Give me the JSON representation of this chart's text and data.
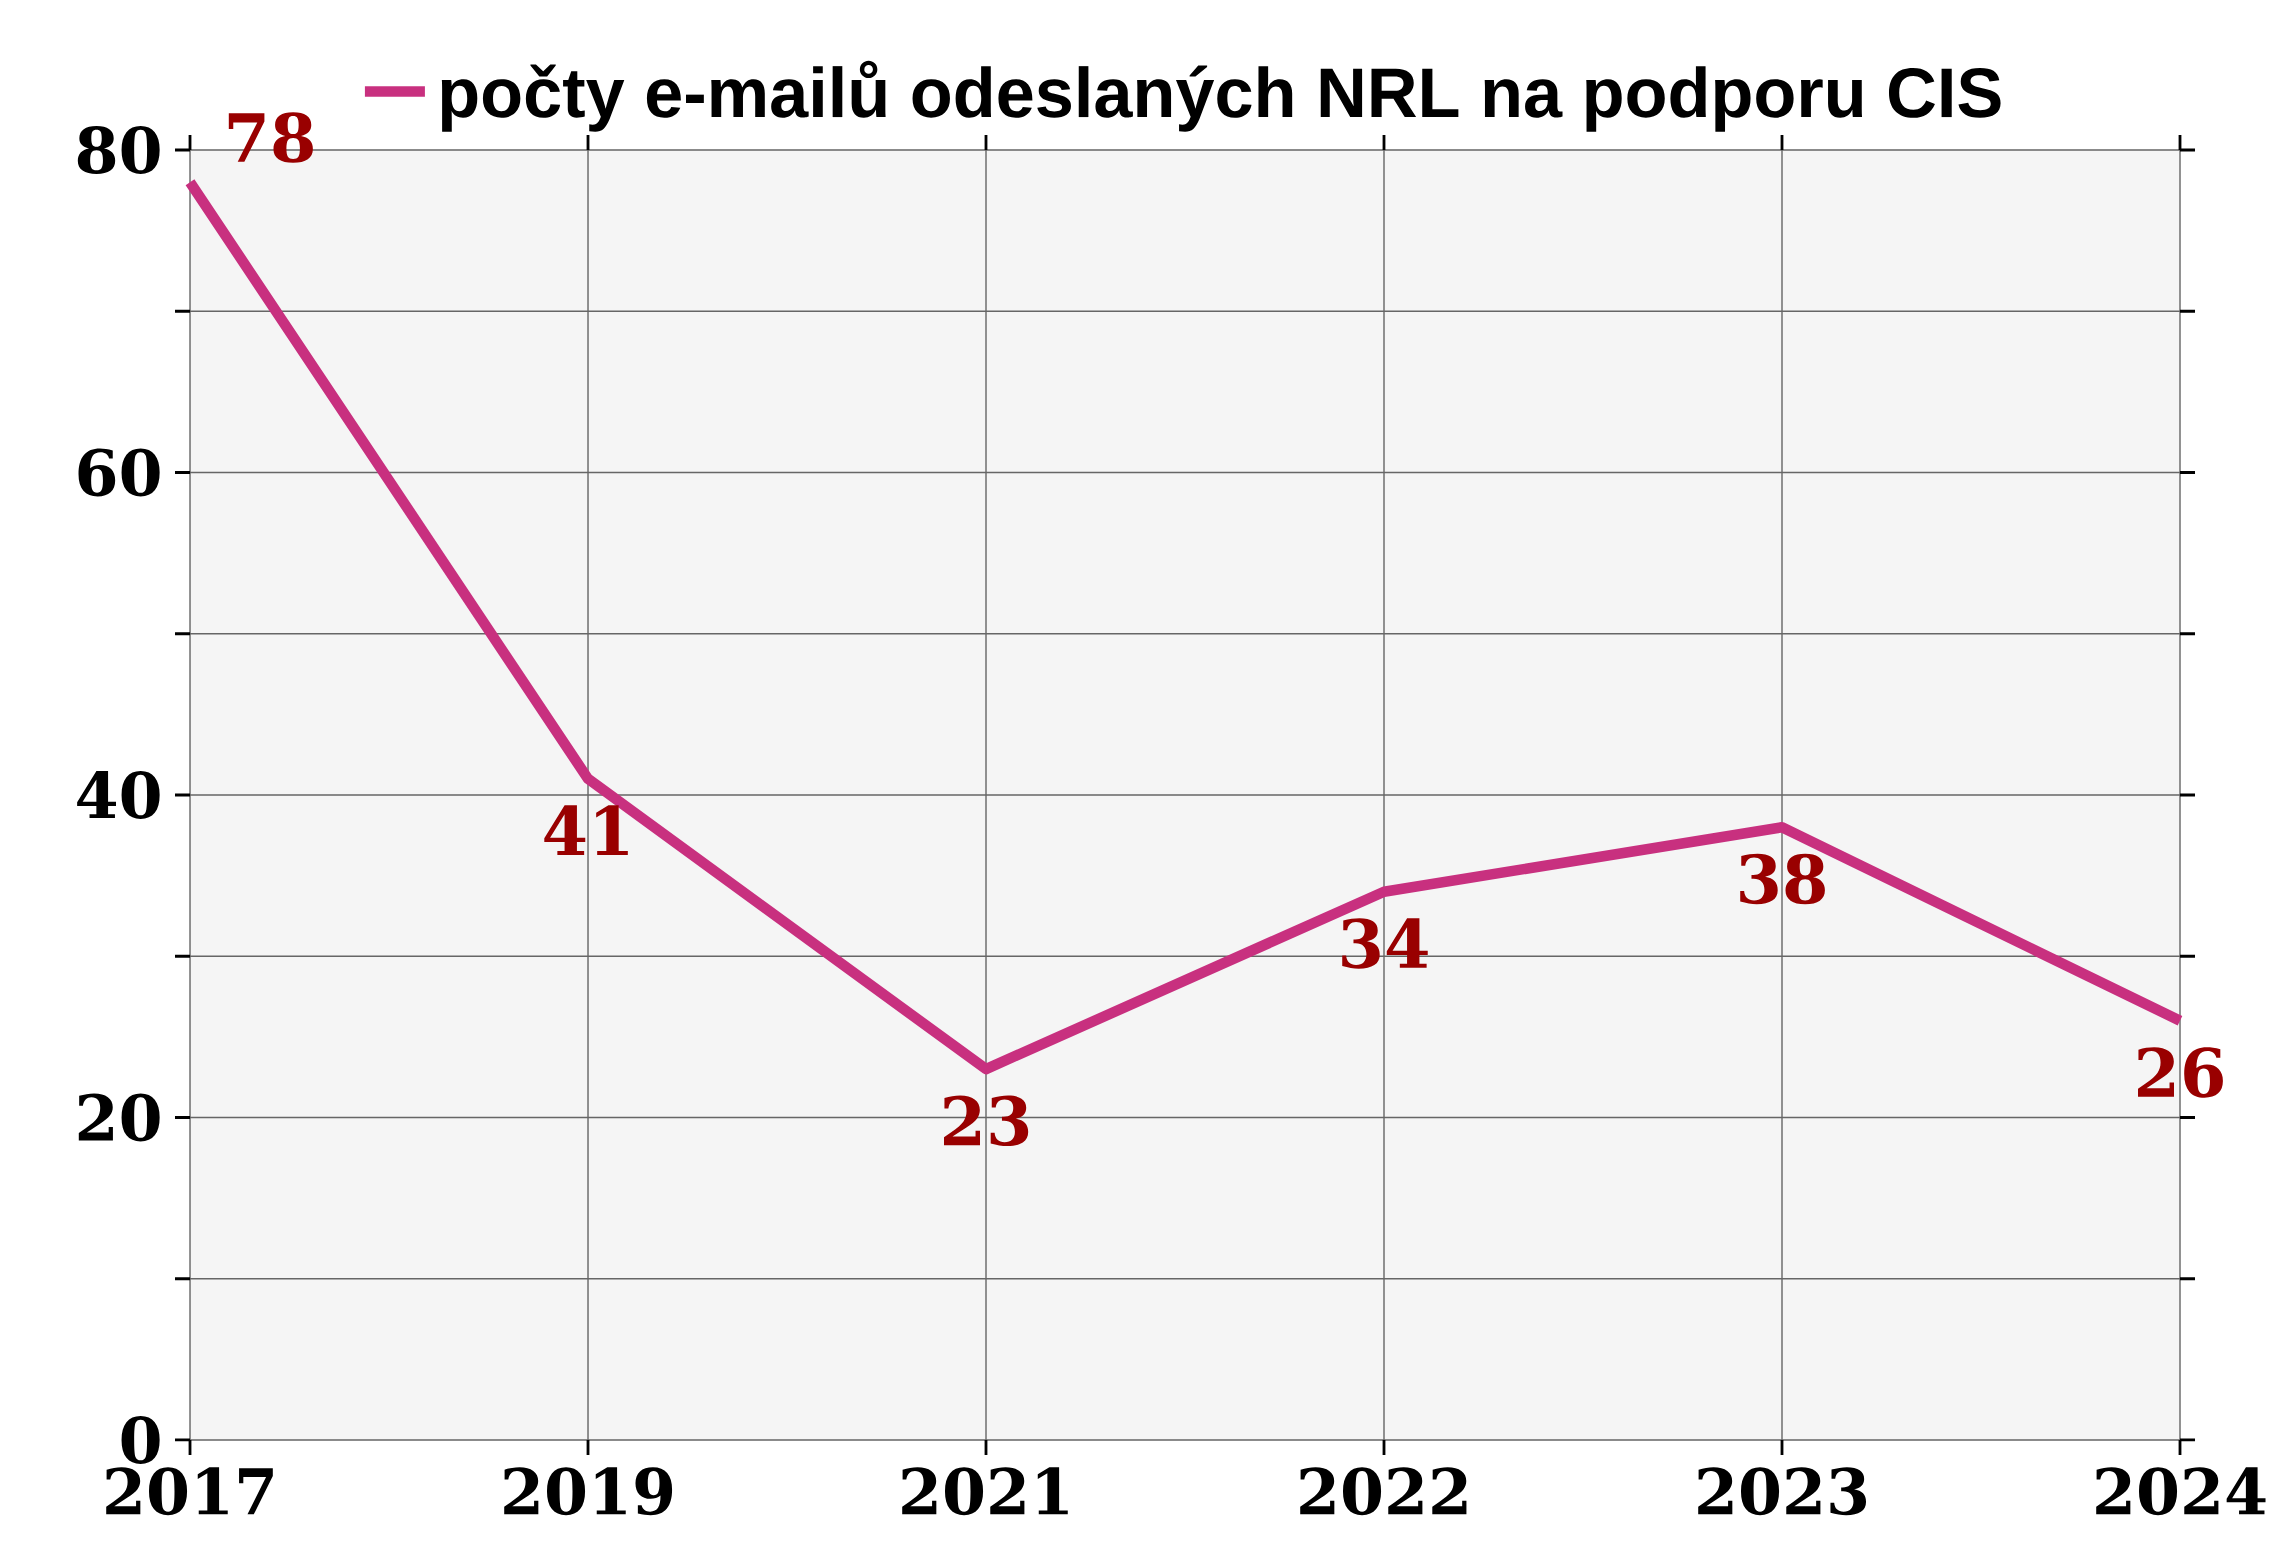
{
  "chart_data": {
    "type": "line",
    "categories": [
      "2017",
      "2019",
      "2021",
      "2022",
      "2023",
      "2024"
    ],
    "series": [
      {
        "name": "počty e-mailů odeslaných NRL na podporu CIS",
        "color": "#c8307f",
        "values": [
          78,
          41,
          23,
          34,
          38,
          26
        ]
      }
    ],
    "ylim": [
      0,
      80
    ],
    "yticks": [
      0,
      {
        "value": 10,
        "label": null
      },
      20,
      {
        "value": 30,
        "label": null
      },
      40,
      {
        "value": 50,
        "label": null
      },
      60,
      {
        "value": 70,
        "label": null
      },
      80
    ],
    "grid": true,
    "legend": "top",
    "data_labels": true,
    "marker": "none",
    "line_style": "solid"
  }
}
